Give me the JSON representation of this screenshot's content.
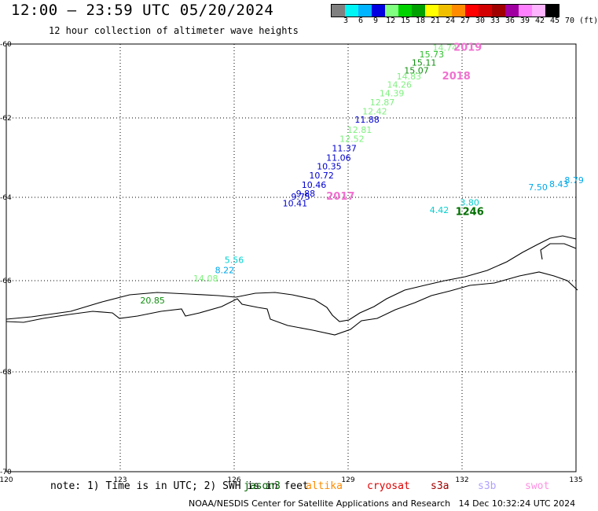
{
  "header": {
    "title": "12:00 – 23:59 UTC 05/20/2024",
    "subtitle": "12 hour collection of altimeter wave heights"
  },
  "colorbar": {
    "colors": [
      "#808080",
      "#00f5f5",
      "#00b4ff",
      "#0000e0",
      "#80ff80",
      "#00d200",
      "#00a000",
      "#ffff00",
      "#f0c000",
      "#ff8c00",
      "#ff0000",
      "#d20000",
      "#a00000",
      "#a000a0",
      "#ff80ff",
      "#ffb4ff",
      "#000000"
    ],
    "labels": [
      "3",
      "6",
      "9",
      "12",
      "15",
      "18",
      "21",
      "24",
      "27",
      "30",
      "33",
      "36",
      "39",
      "42",
      "45",
      "70 (ft)"
    ]
  },
  "map": {
    "lon_ticks": [
      "120",
      "123",
      "126",
      "129",
      "132",
      "135"
    ],
    "lat_ticks": [
      "-60",
      "-62",
      "-64",
      "-66",
      "-68",
      "-70"
    ],
    "lon_range": [
      120,
      135
    ],
    "lat_range": [
      -60,
      -70
    ]
  },
  "observations": [
    {
      "lon": 131.55,
      "lat": -60.18,
      "value": "14.74",
      "color": "#80f080"
    },
    {
      "lon": 131.2,
      "lat": -60.36,
      "value": "15.73",
      "color": "#30c030"
    },
    {
      "lon": 131.0,
      "lat": -60.58,
      "value": "15.11",
      "color": "#109010"
    },
    {
      "lon": 130.8,
      "lat": -60.8,
      "value": "15.07",
      "color": "#109010"
    },
    {
      "lon": 130.6,
      "lat": -60.96,
      "value": "14.83",
      "color": "#80f080"
    },
    {
      "lon": 130.35,
      "lat": -61.18,
      "value": "14.26",
      "color": "#80f080"
    },
    {
      "lon": 130.15,
      "lat": -61.42,
      "value": "14.39",
      "color": "#80f080"
    },
    {
      "lon": 129.9,
      "lat": -61.66,
      "value": "12.87",
      "color": "#80f080"
    },
    {
      "lon": 129.7,
      "lat": -61.9,
      "value": "12.42",
      "color": "#80f080"
    },
    {
      "lon": 129.5,
      "lat": -62.12,
      "value": "11.88",
      "color": "#0000d0"
    },
    {
      "lon": 129.3,
      "lat": -62.38,
      "value": "12.81",
      "color": "#80f080"
    },
    {
      "lon": 129.1,
      "lat": -62.6,
      "value": "12.52",
      "color": "#80f080"
    },
    {
      "lon": 128.9,
      "lat": -62.84,
      "value": "11.37",
      "color": "#0000d0"
    },
    {
      "lon": 128.75,
      "lat": -63.08,
      "value": "11.06",
      "color": "#0000d0"
    },
    {
      "lon": 128.5,
      "lat": -63.3,
      "value": "10.35",
      "color": "#0000d0"
    },
    {
      "lon": 128.3,
      "lat": -63.52,
      "value": "10.72",
      "color": "#0000d0"
    },
    {
      "lon": 128.1,
      "lat": -63.76,
      "value": "10.46",
      "color": "#0000d0"
    },
    {
      "lon": 127.88,
      "lat": -63.98,
      "value": "9.88",
      "color": "#0000d0"
    },
    {
      "lon": 127.75,
      "lat": -64.06,
      "value": "9.75",
      "color": "#0000d0"
    },
    {
      "lon": 127.6,
      "lat": -64.22,
      "value": "10.41",
      "color": "#0000d0"
    },
    {
      "lon": 131.4,
      "lat": -64.38,
      "value": "4.42",
      "color": "#00d0d0"
    },
    {
      "lon": 132.2,
      "lat": -64.2,
      "value": "3.80",
      "color": "#00d0d0"
    },
    {
      "lon": 134.0,
      "lat": -63.82,
      "value": "7.50",
      "color": "#00a8e8"
    },
    {
      "lon": 134.55,
      "lat": -63.74,
      "value": "8.43",
      "color": "#00a8e8"
    },
    {
      "lon": 134.95,
      "lat": -63.64,
      "value": "8.79",
      "color": "#00a8e8"
    },
    {
      "lon": 126.0,
      "lat": -65.58,
      "value": "5.56",
      "color": "#00d0d0"
    },
    {
      "lon": 125.75,
      "lat": -65.82,
      "value": "8.22",
      "color": "#00a8e8"
    },
    {
      "lon": 125.25,
      "lat": -66.02,
      "value": "14.08",
      "color": "#80f080"
    },
    {
      "lon": 123.85,
      "lat": -66.5,
      "value": "20.85",
      "color": "#109010"
    }
  ],
  "track_labels": [
    {
      "lon": 132.15,
      "lat": -60.18,
      "value": "2019",
      "color": "#f070d0"
    },
    {
      "lon": 131.85,
      "lat": -60.96,
      "value": "2018",
      "color": "#f070d0"
    },
    {
      "lon": 128.8,
      "lat": -64.06,
      "value": "2017",
      "color": "#f070d0"
    },
    {
      "lon": 132.2,
      "lat": -64.42,
      "value": "1246",
      "color": "#007000"
    }
  ],
  "footer": {
    "note": "note: 1) Time is in UTC; 2) SWH is in feet",
    "satellites": [
      {
        "name": "jason3",
        "color": "#006400"
      },
      {
        "name": "altika",
        "color": "#ff8c00"
      },
      {
        "name": "cryosat",
        "color": "#e00000"
      },
      {
        "name": "s3a",
        "color": "#a00000"
      },
      {
        "name": "s3b",
        "color": "#b0a0ff"
      },
      {
        "name": "swot",
        "color": "#ff90e0"
      }
    ],
    "credit": "NOAA/NESDIS Center for Satellite Applications and Research   14 Dec 10:32:24 UTC 2024"
  }
}
